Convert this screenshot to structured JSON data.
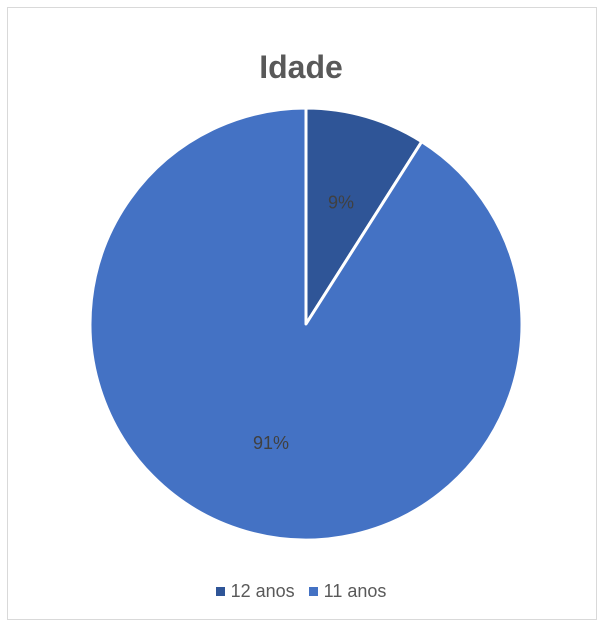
{
  "chart_data": {
    "type": "pie",
    "title": "Idade",
    "slices": [
      {
        "label": "12 anos",
        "value": 9,
        "value_label": "9%",
        "color": "#2f5597"
      },
      {
        "label": "11 anos",
        "value": 91,
        "value_label": "91%",
        "color": "#4472c4"
      }
    ],
    "legend_position": "bottom",
    "start_angle_deg": 0,
    "direction": "clockwise"
  }
}
